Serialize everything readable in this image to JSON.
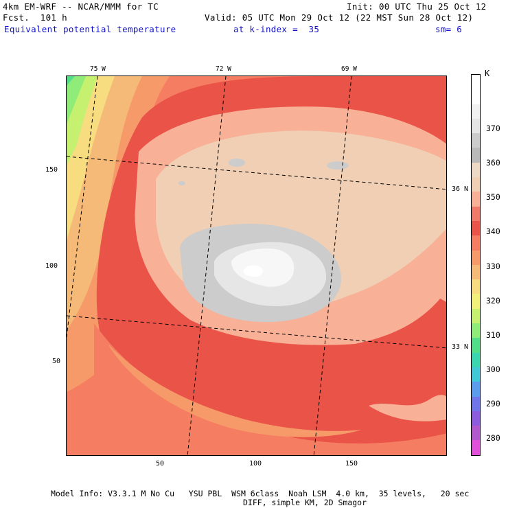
{
  "header": {
    "model": "4km EM-WRF -- NCAR/MMM for TC",
    "init": "Init: 00 UTC Thu 25 Oct 12",
    "forecast": "Fcst.  101 h",
    "valid": "Valid: 05 UTC Mon 29 Oct 12 (22 MST Sun 28 Oct 12)",
    "field": "Equivalent potential temperature",
    "level": "at k-index =  35",
    "smoothing": "sm= 6"
  },
  "map": {
    "lon_labels": [
      "75 W",
      "72 W",
      "69 W"
    ],
    "lat_labels": [
      "36 N",
      "33 N"
    ],
    "y_ticks": [
      "150",
      "100",
      "50"
    ],
    "x_ticks": [
      "50",
      "100",
      "150"
    ]
  },
  "colorbar": {
    "unit": "K",
    "ticks": [
      "370",
      "360",
      "350",
      "340",
      "330",
      "320",
      "310",
      "300",
      "290",
      "280"
    ],
    "colors": [
      "#ffffff",
      "#ffffff",
      "#f2f2f2",
      "#e6e6e6",
      "#cccccc",
      "#b9b9b9",
      "#eed8c6",
      "#f0cfb4",
      "#f8b096",
      "#f07a6a",
      "#ea5448",
      "#f57e62",
      "#f79a6a",
      "#f6ba78",
      "#f8dc80",
      "#f0f07a",
      "#c6f070",
      "#90ec78",
      "#50de88",
      "#3ad6b0",
      "#40c8d8",
      "#5c9cec",
      "#7076ea",
      "#8c5cdc",
      "#b058cc",
      "#e050d8"
    ]
  },
  "footer": {
    "line1": "Model Info: V3.3.1 M No Cu   YSU PBL  WSM 6class  Noah LSM  4.0 km,  35 levels,   20 sec",
    "line2": "DIFF, simple KM, 2D Smagor"
  }
}
